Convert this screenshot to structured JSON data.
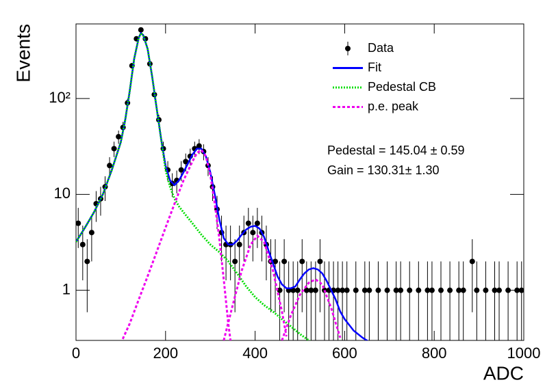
{
  "chart_data": {
    "type": "line",
    "x_label": "ADC",
    "y_label": "Events",
    "annotations": [
      "Pedestal = 145.04 ± 0.59",
      "Gain = 130.31± 1.30"
    ],
    "xlim": [
      0,
      1000
    ],
    "xticks": [
      0,
      200,
      400,
      600,
      800,
      1000
    ],
    "ylim": [
      0.3,
      600
    ],
    "log_y": true,
    "yticks": [
      1,
      10,
      {
        "value": 100,
        "label": "10²"
      }
    ],
    "legend": "upper right",
    "series": [
      {
        "name": "Data",
        "type": "points",
        "color": "#000000",
        "x": [
          5,
          15,
          25,
          35,
          45,
          55,
          65,
          75,
          85,
          95,
          105,
          115,
          125,
          135,
          145,
          155,
          165,
          175,
          185,
          195,
          205,
          215,
          225,
          235,
          245,
          255,
          265,
          275,
          285,
          295,
          305,
          315,
          325,
          335,
          345,
          355,
          365,
          375,
          385,
          395,
          405,
          415,
          425,
          435,
          445,
          455,
          465,
          475,
          485,
          495,
          505,
          515,
          525,
          535,
          545,
          555,
          565,
          575,
          585,
          595,
          605,
          615,
          625,
          635,
          645,
          655,
          665,
          675,
          685,
          695,
          705,
          715,
          725,
          735,
          745,
          755,
          765,
          775,
          785,
          795,
          805,
          815,
          825,
          835,
          845,
          855,
          865,
          875,
          885,
          895,
          905,
          915,
          925,
          935,
          945,
          955,
          965,
          975,
          985,
          995
        ],
        "values": [
          5,
          3,
          2,
          4,
          8,
          9,
          12,
          20,
          30,
          40,
          50,
          90,
          220,
          420,
          520,
          420,
          230,
          110,
          60,
          30,
          18,
          13,
          14,
          18,
          22,
          25,
          30,
          32,
          28,
          20,
          12,
          7,
          4,
          3,
          3,
          2,
          3,
          4,
          5,
          4,
          5,
          4,
          3,
          2,
          2,
          1,
          2,
          1,
          1,
          1,
          2,
          1,
          1,
          1,
          2,
          1,
          1,
          1,
          1,
          1,
          1,
          null,
          1,
          null,
          1,
          1,
          null,
          1,
          null,
          1,
          null,
          1,
          1,
          null,
          1,
          null,
          1,
          null,
          1,
          1,
          null,
          1,
          null,
          1,
          null,
          1,
          1,
          null,
          2,
          1,
          null,
          1,
          null,
          1,
          1,
          null,
          1,
          null,
          1,
          1
        ],
        "errors": [
          2.24,
          1.73,
          1.41,
          2,
          2.83,
          3,
          3.46,
          4.47,
          5.48,
          6.32,
          7.07,
          9.49,
          14.83,
          20.49,
          22.8,
          20.49,
          15.17,
          10.49,
          7.75,
          5.48,
          4.24,
          3.61,
          3.74,
          4.24,
          4.69,
          5,
          5.48,
          5.66,
          5.29,
          4.47,
          3.46,
          2.65,
          2,
          1.73,
          1.73,
          1.41,
          1.73,
          2,
          2.24,
          2,
          2.24,
          2,
          1.73,
          1.41,
          1.41,
          1,
          1.41,
          1,
          1,
          1,
          1.41,
          1,
          1,
          1,
          1.41,
          1,
          1,
          1,
          1,
          1,
          1,
          null,
          1,
          null,
          1,
          1,
          null,
          1,
          null,
          1,
          null,
          1,
          1,
          null,
          1,
          null,
          1,
          null,
          1,
          1,
          null,
          1,
          null,
          1,
          null,
          1,
          1,
          null,
          1.41,
          1,
          null,
          1,
          null,
          1,
          1,
          null,
          1,
          null,
          1,
          1
        ]
      },
      {
        "name": "Fit",
        "type": "line",
        "style": "solid",
        "color": "#0000ff",
        "x": [
          0,
          20,
          40,
          60,
          80,
          100,
          110,
          120,
          130,
          140,
          145,
          150,
          160,
          170,
          180,
          190,
          200,
          210,
          220,
          230,
          240,
          250,
          260,
          270,
          280,
          290,
          300,
          310,
          320,
          330,
          340,
          350,
          360,
          370,
          380,
          390,
          400,
          410,
          420,
          430,
          440,
          450,
          460,
          470,
          480,
          490,
          500,
          510,
          520,
          530,
          540,
          550,
          560,
          570,
          580,
          590,
          600,
          620,
          640,
          660
        ],
        "values": [
          3.2,
          4.5,
          6.5,
          10,
          18,
          35,
          60,
          120,
          260,
          430,
          480,
          460,
          330,
          170,
          80,
          38,
          20,
          14,
          12.5,
          14,
          17,
          21,
          26,
          30,
          30,
          25,
          17,
          10,
          5.5,
          3.5,
          3,
          3,
          3.3,
          3.8,
          4.3,
          4.6,
          4.7,
          4.4,
          3.6,
          2.6,
          1.9,
          1.4,
          1.15,
          1.05,
          1.05,
          1.1,
          1.3,
          1.5,
          1.65,
          1.7,
          1.65,
          1.5,
          1.25,
          1.0,
          0.8,
          0.6,
          0.5,
          0.38,
          0.32,
          0.28
        ]
      },
      {
        "name": "Pedestal CB",
        "type": "line",
        "style": "dotted",
        "color": "#00dd00",
        "x": [
          0,
          20,
          40,
          60,
          80,
          100,
          110,
          120,
          130,
          140,
          145,
          150,
          160,
          170,
          180,
          190,
          200,
          210,
          220,
          230,
          240,
          260,
          280,
          300,
          320,
          340,
          360,
          380,
          400,
          420,
          440,
          460,
          480,
          500,
          520,
          540
        ],
        "values": [
          3.2,
          4.5,
          6.5,
          10,
          18,
          35,
          60,
          120,
          260,
          430,
          480,
          460,
          330,
          170,
          80,
          38,
          18,
          12,
          9,
          7.5,
          6.5,
          5,
          3.8,
          3,
          2.5,
          2,
          1.5,
          1.1,
          0.85,
          0.7,
          0.6,
          0.5,
          0.42,
          0.35,
          0.3,
          0.26
        ]
      },
      {
        "name": "p.e. peak",
        "type": "line",
        "style": "dashed",
        "color": "#ee00ee",
        "x": [
          100,
          120,
          140,
          160,
          180,
          200,
          220,
          240,
          260,
          270,
          280,
          290,
          300,
          310,
          320,
          330,
          340,
          350,
          340,
          330,
          350,
          370,
          390,
          405,
          420,
          440,
          460,
          470,
          465,
          460,
          480,
          500,
          520,
          535,
          550,
          570,
          590
        ],
        "values": [
          0.28,
          0.45,
          0.8,
          1.4,
          2.5,
          4.5,
          8,
          14,
          22,
          27,
          29,
          25,
          16,
          8,
          3.5,
          1.3,
          0.45,
          0.2,
          null,
          0.3,
          0.7,
          1.6,
          3,
          3.7,
          3.2,
          1.6,
          0.6,
          0.33,
          null,
          0.3,
          0.55,
          0.9,
          1.2,
          1.3,
          1.15,
          0.65,
          0.32
        ]
      }
    ]
  }
}
